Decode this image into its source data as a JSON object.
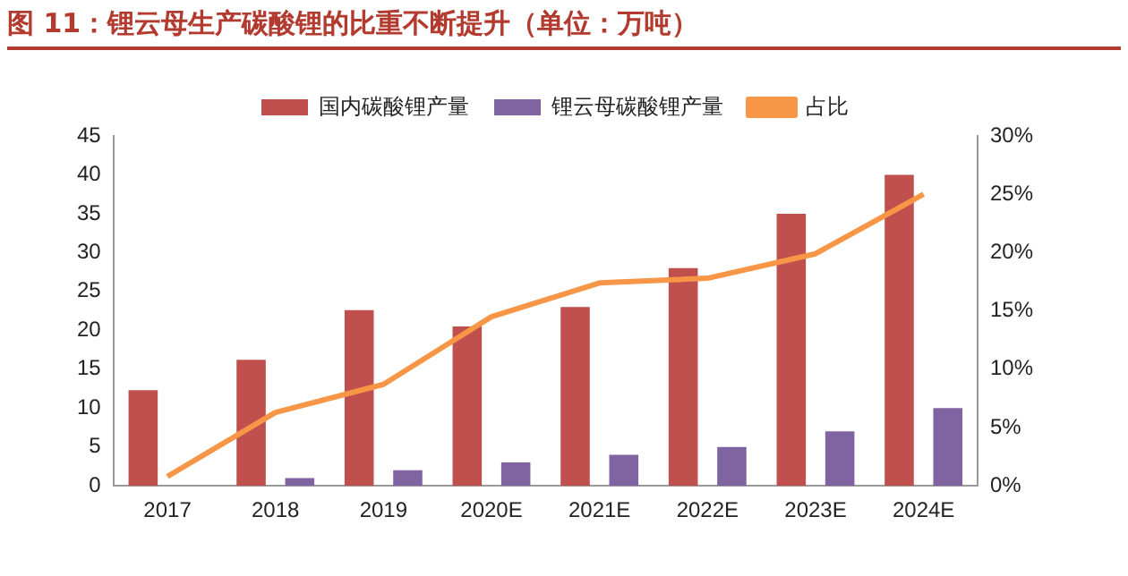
{
  "chart_data": {
    "type": "bar",
    "title": "图 11：锂云母生产碳酸锂的比重不断提升（单位：万吨）",
    "categories": [
      "2017",
      "2018",
      "2019",
      "2020E",
      "2021E",
      "2022E",
      "2023E",
      "2024E"
    ],
    "series": [
      {
        "name": "国内碳酸锂产量",
        "color": "#c0504d",
        "values": [
          12.3,
          16.2,
          22.6,
          20.5,
          23,
          28,
          35,
          40
        ]
      },
      {
        "name": "锂云母碳酸锂产量",
        "color": "#8064a2",
        "values": [
          null,
          1,
          2,
          3,
          4,
          5,
          7,
          10
        ]
      },
      {
        "name": "占比",
        "type": "line",
        "axis": "y2",
        "color": "#f79646",
        "values": [
          0.8,
          6.3,
          8.7,
          14.5,
          17.4,
          17.8,
          19.9,
          25
        ]
      }
    ],
    "ylim": [
      0,
      45
    ],
    "yticks": [
      0,
      5,
      10,
      15,
      20,
      25,
      30,
      35,
      40,
      45
    ],
    "y2lim": [
      0,
      30
    ],
    "y2ticks": [
      {
        "value": 0,
        "label": "0%"
      },
      {
        "value": 5,
        "label": "5%"
      },
      {
        "value": 10,
        "label": "10%"
      },
      {
        "value": 15,
        "label": "15%"
      },
      {
        "value": 20,
        "label": "20%"
      },
      {
        "value": 25,
        "label": "25%"
      },
      {
        "value": 30,
        "label": "30%"
      }
    ],
    "grid": false,
    "legend": "top",
    "marker": "none"
  }
}
